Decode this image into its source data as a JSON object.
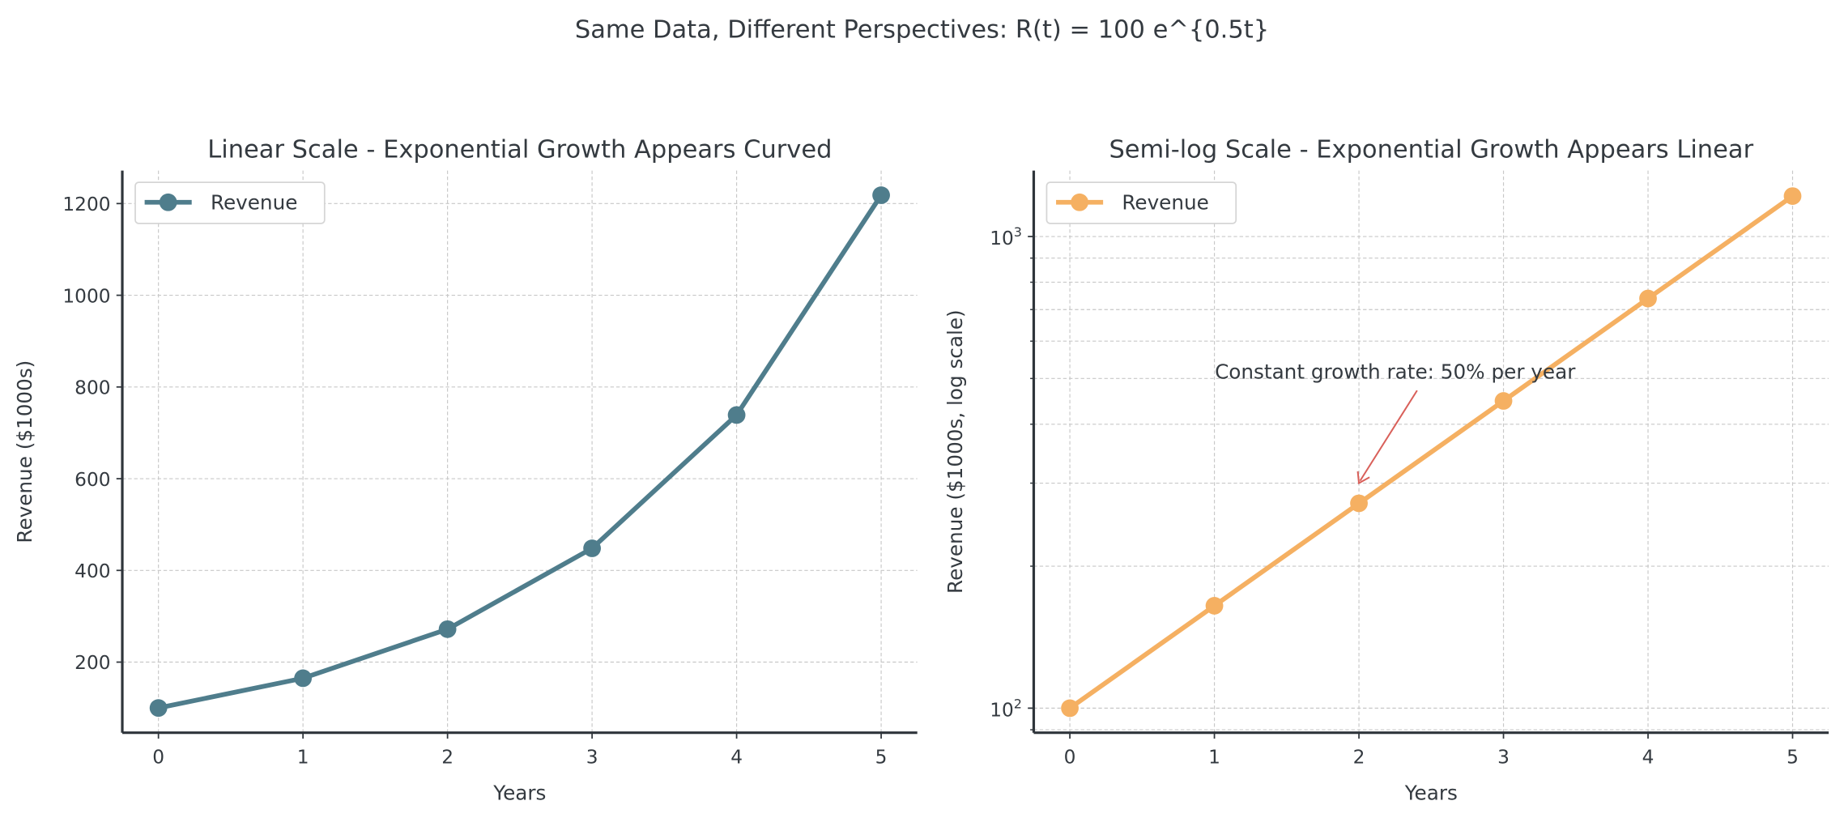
{
  "suptitle": "Same Data, Different Perspectives: R(t) = 100 e^{0.5t}",
  "chart_data": [
    {
      "type": "line",
      "title": "Linear Scale - Exponential Growth Appears Curved",
      "xlabel": "Years",
      "ylabel": "Revenue ($1000s)",
      "yscale": "linear",
      "x": [
        0,
        1,
        2,
        3,
        4,
        5
      ],
      "series": [
        {
          "name": "Revenue",
          "values": [
            100,
            164.87,
            271.83,
            448.17,
            738.91,
            1218.25
          ],
          "color": "#4f7d8c"
        }
      ],
      "xlim": [
        -0.25,
        5.25
      ],
      "ylim": [
        46,
        1272
      ],
      "xticks": [
        "0",
        "1",
        "2",
        "3",
        "4",
        "5"
      ],
      "yticks": [
        200,
        400,
        600,
        800,
        1000,
        1200
      ],
      "ytick_labels": [
        "200",
        "400",
        "600",
        "800",
        "1000",
        "1200"
      ],
      "grid": true,
      "legend": {
        "placement": "top-left",
        "entries": [
          "Revenue"
        ]
      }
    },
    {
      "type": "line",
      "title": "Semi-log Scale - Exponential Growth Appears Linear",
      "xlabel": "Years",
      "ylabel": "Revenue ($1000s, log scale)",
      "yscale": "log",
      "x": [
        0,
        1,
        2,
        3,
        4,
        5
      ],
      "series": [
        {
          "name": "Revenue",
          "values": [
            100,
            164.87,
            271.83,
            448.17,
            738.91,
            1218.25
          ],
          "color": "#f5b062"
        }
      ],
      "xlim": [
        -0.25,
        5.25
      ],
      "ylim": [
        88.7,
        1380
      ],
      "xticks": [
        "0",
        "1",
        "2",
        "3",
        "4",
        "5"
      ],
      "yticks": [
        100,
        1000
      ],
      "ytick_labels": [
        {
          "base": "10",
          "exp": "2"
        },
        {
          "base": "10",
          "exp": "3"
        }
      ],
      "minor_yticks": [
        90,
        200,
        300,
        400,
        500,
        600,
        700,
        800,
        900
      ],
      "grid": true,
      "legend": {
        "placement": "top-left",
        "entries": [
          "Revenue"
        ]
      },
      "annotation": {
        "text": "Constant growth rate: 50% per year",
        "points_to": {
          "x": 2,
          "y": 300
        },
        "color": "#d9605a"
      }
    }
  ]
}
